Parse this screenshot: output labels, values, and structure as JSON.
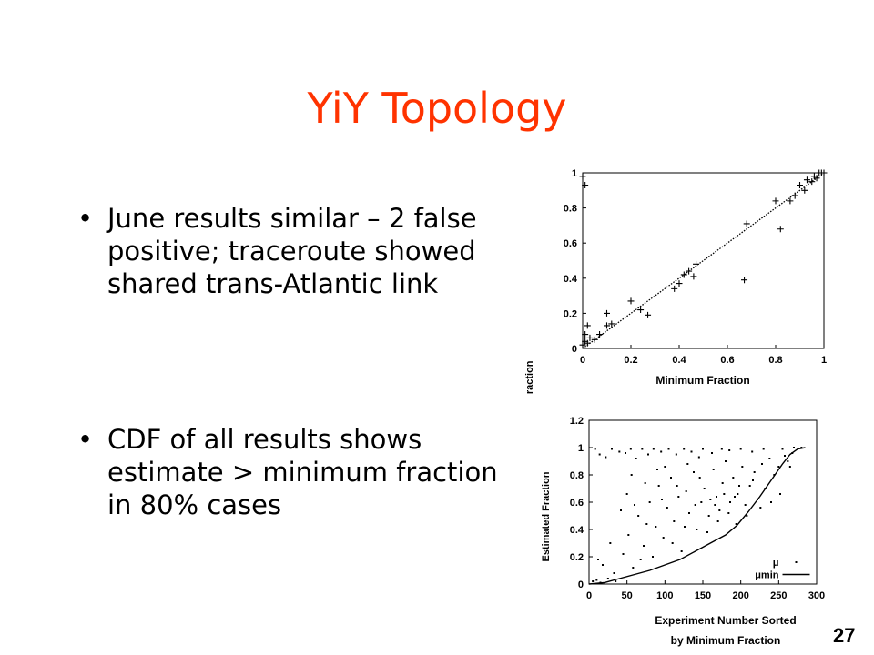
{
  "slide": {
    "title": "YiY Topology",
    "bullets": [
      "June results similar – 2 false positive; traceroute showed shared trans-Atlantic link",
      "CDF of all results shows estimate > minimum fraction in 80% cases"
    ],
    "bullet_glyph": "•",
    "page_number": "27"
  },
  "chart_data": [
    {
      "type": "scatter",
      "xlabel": "Minimum Fraction",
      "ylabel": "Estimated Fraction",
      "xlim": [
        0,
        1
      ],
      "ylim": [
        0,
        1
      ],
      "xticks": [
        "0",
        "0.2",
        "0.4",
        "0.6",
        "0.8",
        "1"
      ],
      "yticks": [
        "0",
        "0.2",
        "0.4",
        "0.6",
        "0.8",
        "1"
      ],
      "marker": "+",
      "reference_line": {
        "style": "dotted",
        "from": [
          0,
          0
        ],
        "to": [
          1,
          1
        ]
      },
      "points": [
        [
          0.0,
          0.98
        ],
        [
          0.01,
          0.93
        ],
        [
          0.0,
          0.02
        ],
        [
          0.01,
          0.04
        ],
        [
          0.02,
          0.03
        ],
        [
          0.03,
          0.06
        ],
        [
          0.05,
          0.05
        ],
        [
          0.07,
          0.08
        ],
        [
          0.01,
          0.08
        ],
        [
          0.02,
          0.13
        ],
        [
          0.1,
          0.13
        ],
        [
          0.1,
          0.2
        ],
        [
          0.12,
          0.14
        ],
        [
          0.2,
          0.27
        ],
        [
          0.24,
          0.22
        ],
        [
          0.27,
          0.19
        ],
        [
          0.38,
          0.34
        ],
        [
          0.4,
          0.37
        ],
        [
          0.42,
          0.42
        ],
        [
          0.44,
          0.44
        ],
        [
          0.46,
          0.41
        ],
        [
          0.47,
          0.48
        ],
        [
          0.67,
          0.39
        ],
        [
          0.68,
          0.71
        ],
        [
          0.8,
          0.84
        ],
        [
          0.82,
          0.68
        ],
        [
          0.86,
          0.84
        ],
        [
          0.88,
          0.87
        ],
        [
          0.9,
          0.93
        ],
        [
          0.92,
          0.9
        ],
        [
          0.93,
          0.96
        ],
        [
          0.95,
          0.95
        ],
        [
          0.96,
          0.98
        ],
        [
          0.97,
          0.97
        ],
        [
          0.98,
          1.0
        ],
        [
          0.99,
          1.0
        ],
        [
          1.0,
          1.0
        ]
      ]
    },
    {
      "type": "scatter",
      "xlabel": "Experiment Number Sorted by Minimum Fraction",
      "ylabel": "Estimated Fraction",
      "xlim": [
        0,
        300
      ],
      "ylim": [
        0,
        1.2
      ],
      "xticks": [
        "0",
        "50",
        "100",
        "150",
        "200",
        "250",
        "300"
      ],
      "yticks": [
        "0",
        "0.2",
        "0.4",
        "0.6",
        "0.8",
        "1",
        "1.2"
      ],
      "series": [
        {
          "name": "μ",
          "marker": "dot"
        },
        {
          "name": "μmin",
          "style": "line",
          "line": [
            [
              0,
              0
            ],
            [
              20,
              0.01
            ],
            [
              40,
              0.04
            ],
            [
              60,
              0.07
            ],
            [
              80,
              0.1
            ],
            [
              100,
              0.14
            ],
            [
              120,
              0.18
            ],
            [
              140,
              0.24
            ],
            [
              160,
              0.3
            ],
            [
              180,
              0.36
            ],
            [
              195,
              0.43
            ],
            [
              210,
              0.53
            ],
            [
              225,
              0.64
            ],
            [
              240,
              0.76
            ],
            [
              255,
              0.88
            ],
            [
              265,
              0.95
            ],
            [
              275,
              0.99
            ],
            [
              285,
              1.0
            ]
          ]
        }
      ],
      "points": [
        [
          5,
          0.02
        ],
        [
          10,
          0.03
        ],
        [
          15,
          0.01
        ],
        [
          25,
          0.04
        ],
        [
          35,
          0.02
        ],
        [
          8,
          0.99
        ],
        [
          14,
          0.95
        ],
        [
          22,
          0.93
        ],
        [
          30,
          0.99
        ],
        [
          40,
          0.97
        ],
        [
          48,
          0.96
        ],
        [
          55,
          0.99
        ],
        [
          62,
          0.92
        ],
        [
          70,
          0.99
        ],
        [
          78,
          0.95
        ],
        [
          85,
          0.99
        ],
        [
          95,
          0.97
        ],
        [
          105,
          0.99
        ],
        [
          115,
          0.95
        ],
        [
          125,
          0.99
        ],
        [
          135,
          0.97
        ],
        [
          145,
          0.93
        ],
        [
          150,
          0.99
        ],
        [
          162,
          0.96
        ],
        [
          175,
          0.99
        ],
        [
          185,
          0.98
        ],
        [
          200,
          0.99
        ],
        [
          215,
          0.97
        ],
        [
          230,
          0.99
        ],
        [
          255,
          0.99
        ],
        [
          270,
          1.0
        ],
        [
          280,
          1.0
        ],
        [
          12,
          0.18
        ],
        [
          18,
          0.14
        ],
        [
          28,
          0.3
        ],
        [
          33,
          0.08
        ],
        [
          45,
          0.22
        ],
        [
          52,
          0.36
        ],
        [
          58,
          0.12
        ],
        [
          65,
          0.5
        ],
        [
          72,
          0.28
        ],
        [
          80,
          0.6
        ],
        [
          88,
          0.42
        ],
        [
          92,
          0.72
        ],
        [
          98,
          0.34
        ],
        [
          103,
          0.56
        ],
        [
          108,
          0.78
        ],
        [
          112,
          0.46
        ],
        [
          118,
          0.64
        ],
        [
          122,
          0.24
        ],
        [
          128,
          0.68
        ],
        [
          132,
          0.52
        ],
        [
          138,
          0.82
        ],
        [
          142,
          0.4
        ],
        [
          148,
          0.6
        ],
        [
          152,
          0.7
        ],
        [
          158,
          0.5
        ],
        [
          164,
          0.84
        ],
        [
          168,
          0.64
        ],
        [
          172,
          0.54
        ],
        [
          176,
          0.74
        ],
        [
          180,
          0.9
        ],
        [
          186,
          0.6
        ],
        [
          190,
          0.78
        ],
        [
          196,
          0.66
        ],
        [
          202,
          0.86
        ],
        [
          206,
          0.58
        ],
        [
          212,
          0.72
        ],
        [
          218,
          0.82
        ],
        [
          222,
          0.62
        ],
        [
          228,
          0.88
        ],
        [
          232,
          0.7
        ],
        [
          238,
          0.92
        ],
        [
          244,
          0.8
        ],
        [
          250,
          0.86
        ],
        [
          258,
          0.94
        ],
        [
          262,
          0.9
        ],
        [
          268,
          0.96
        ],
        [
          60,
          0.58
        ],
        [
          68,
          0.18
        ],
        [
          76,
          0.44
        ],
        [
          84,
          0.2
        ],
        [
          96,
          0.62
        ],
        [
          110,
          0.3
        ],
        [
          126,
          0.42
        ],
        [
          140,
          0.58
        ],
        [
          156,
          0.38
        ],
        [
          170,
          0.46
        ],
        [
          184,
          0.52
        ],
        [
          194,
          0.44
        ],
        [
          208,
          0.5
        ],
        [
          226,
          0.56
        ],
        [
          240,
          0.6
        ],
        [
          252,
          0.66
        ],
        [
          265,
          0.86
        ],
        [
          100,
          0.86
        ],
        [
          130,
          0.88
        ],
        [
          160,
          0.62
        ],
        [
          178,
          0.66
        ],
        [
          198,
          0.72
        ],
        [
          42,
          0.54
        ],
        [
          50,
          0.66
        ],
        [
          56,
          0.8
        ],
        [
          74,
          0.74
        ],
        [
          90,
          0.84
        ],
        [
          116,
          0.72
        ],
        [
          146,
          0.78
        ],
        [
          166,
          0.58
        ],
        [
          192,
          0.64
        ],
        [
          216,
          0.76
        ]
      ]
    }
  ]
}
